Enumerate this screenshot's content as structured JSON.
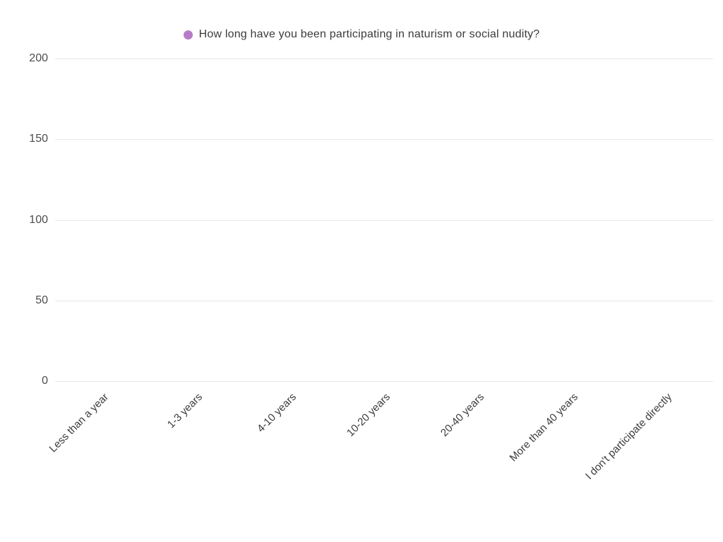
{
  "chart_data": {
    "type": "bar",
    "title": "How long have you been participating in naturism or social nudity?",
    "categories": [
      "Less than a year",
      "1-3 years",
      "4-10 years",
      "10-20 years",
      "20-40 years",
      "More than 40 years",
      "I don't participate directly"
    ],
    "values": [
      0,
      0,
      0,
      0,
      0,
      0,
      0
    ],
    "xlabel": "",
    "ylabel": "",
    "ylim": [
      0,
      200
    ],
    "yticks": [
      0,
      50,
      100,
      150,
      200
    ],
    "grid": true,
    "legend_position": "top"
  },
  "colors": {
    "accent": "#b77bc7",
    "grid": "#e6e6e6",
    "axis_text": "#4d4d4d",
    "title_text": "#3b3b3b",
    "background": "#ffffff"
  }
}
